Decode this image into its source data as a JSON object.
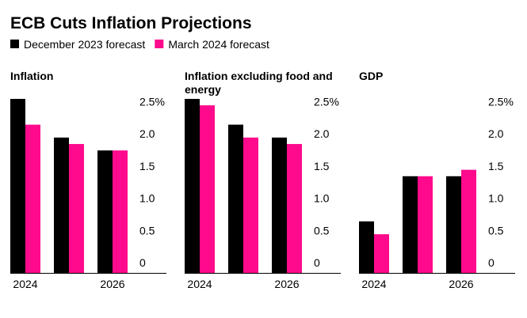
{
  "title": "ECB Cuts Inflation Projections",
  "chart_data": [
    {
      "type": "bar",
      "title": "Inflation",
      "categories": [
        "2024",
        null,
        "2026"
      ],
      "series": [
        {
          "name": "December 2023 forecast",
          "color": "#000000",
          "values": [
            2.7,
            2.1,
            1.9
          ]
        },
        {
          "name": "March 2024 forecast",
          "color": "#ff0a8c",
          "values": [
            2.3,
            2.0,
            1.9
          ]
        }
      ],
      "ylim": [
        0,
        2.7
      ],
      "yticks": [
        0,
        0.5,
        {
          "value": 1,
          "label": "1.0"
        },
        1.5,
        {
          "value": 2,
          "label": "2.0"
        },
        {
          "value": 2.5,
          "label": "2.5%"
        }
      ]
    },
    {
      "type": "bar",
      "title": "Inflation excluding food and energy",
      "categories": [
        "2024",
        null,
        "2026"
      ],
      "series": [
        {
          "name": "December 2023 forecast",
          "color": "#000000",
          "values": [
            2.7,
            2.3,
            2.1
          ]
        },
        {
          "name": "March 2024 forecast",
          "color": "#ff0a8c",
          "values": [
            2.6,
            2.1,
            2.0
          ]
        }
      ],
      "ylim": [
        0,
        2.7
      ],
      "yticks": [
        0,
        0.5,
        {
          "value": 1,
          "label": "1.0"
        },
        1.5,
        {
          "value": 2,
          "label": "2.0"
        },
        {
          "value": 2.5,
          "label": "2.5%"
        }
      ]
    },
    {
      "type": "bar",
      "title": "GDP",
      "categories": [
        "2024",
        null,
        "2026"
      ],
      "series": [
        {
          "name": "December 2023 forecast",
          "color": "#000000",
          "values": [
            0.8,
            1.5,
            1.5
          ]
        },
        {
          "name": "March 2024 forecast",
          "color": "#ff0a8c",
          "values": [
            0.6,
            1.5,
            1.6
          ]
        }
      ],
      "ylim": [
        0,
        2.7
      ],
      "yticks": [
        0,
        0.5,
        {
          "value": 1,
          "label": "1.0"
        },
        1.5,
        {
          "value": 2,
          "label": "2.0"
        },
        {
          "value": 2.5,
          "label": "2.5%"
        }
      ]
    }
  ]
}
